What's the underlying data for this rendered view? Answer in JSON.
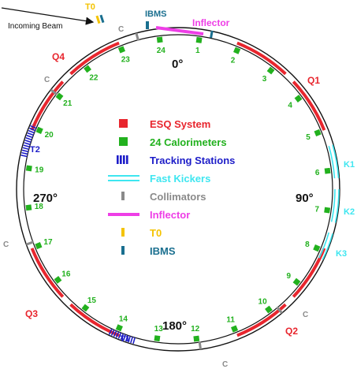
{
  "incoming_beam_label": "Incoming Beam",
  "angles": {
    "top": "0°",
    "right": "90°",
    "bottom": "180°",
    "left": "270°"
  },
  "element_labels": {
    "t0": "T0",
    "ibms": "IBMS",
    "inflector": "Inflector",
    "q1": "Q1",
    "q2": "Q2",
    "q3": "Q3",
    "q4": "Q4",
    "k1": "K1",
    "k2": "K2",
    "k3": "K3",
    "t1": "T1",
    "t2": "T2",
    "collimator": "C"
  },
  "calorimeter_numbers": [
    "1",
    "2",
    "3",
    "4",
    "5",
    "6",
    "7",
    "8",
    "9",
    "10",
    "11",
    "12",
    "13",
    "14",
    "15",
    "16",
    "17",
    "18",
    "19",
    "20",
    "21",
    "22",
    "23",
    "24"
  ],
  "legend": [
    {
      "label": "ESQ System",
      "color": "#e8262e",
      "symbol": "esq"
    },
    {
      "label": "24 Calorimeters",
      "color": "#22b11e",
      "symbol": "calo"
    },
    {
      "label": "Tracking Stations",
      "color": "#1d1dc8",
      "symbol": "tracker"
    },
    {
      "label": "Fast Kickers",
      "color": "#3ee6f0",
      "symbol": "kicker"
    },
    {
      "label": "Collimators",
      "color": "#8a8a8a",
      "symbol": "collimator"
    },
    {
      "label": "Inflector",
      "color": "#ee3ee6",
      "symbol": "inflector"
    },
    {
      "label": "T0",
      "color": "#f4c300",
      "symbol": "t0"
    },
    {
      "label": "IBMS",
      "color": "#1a6f8f",
      "symbol": "ibms"
    }
  ]
}
